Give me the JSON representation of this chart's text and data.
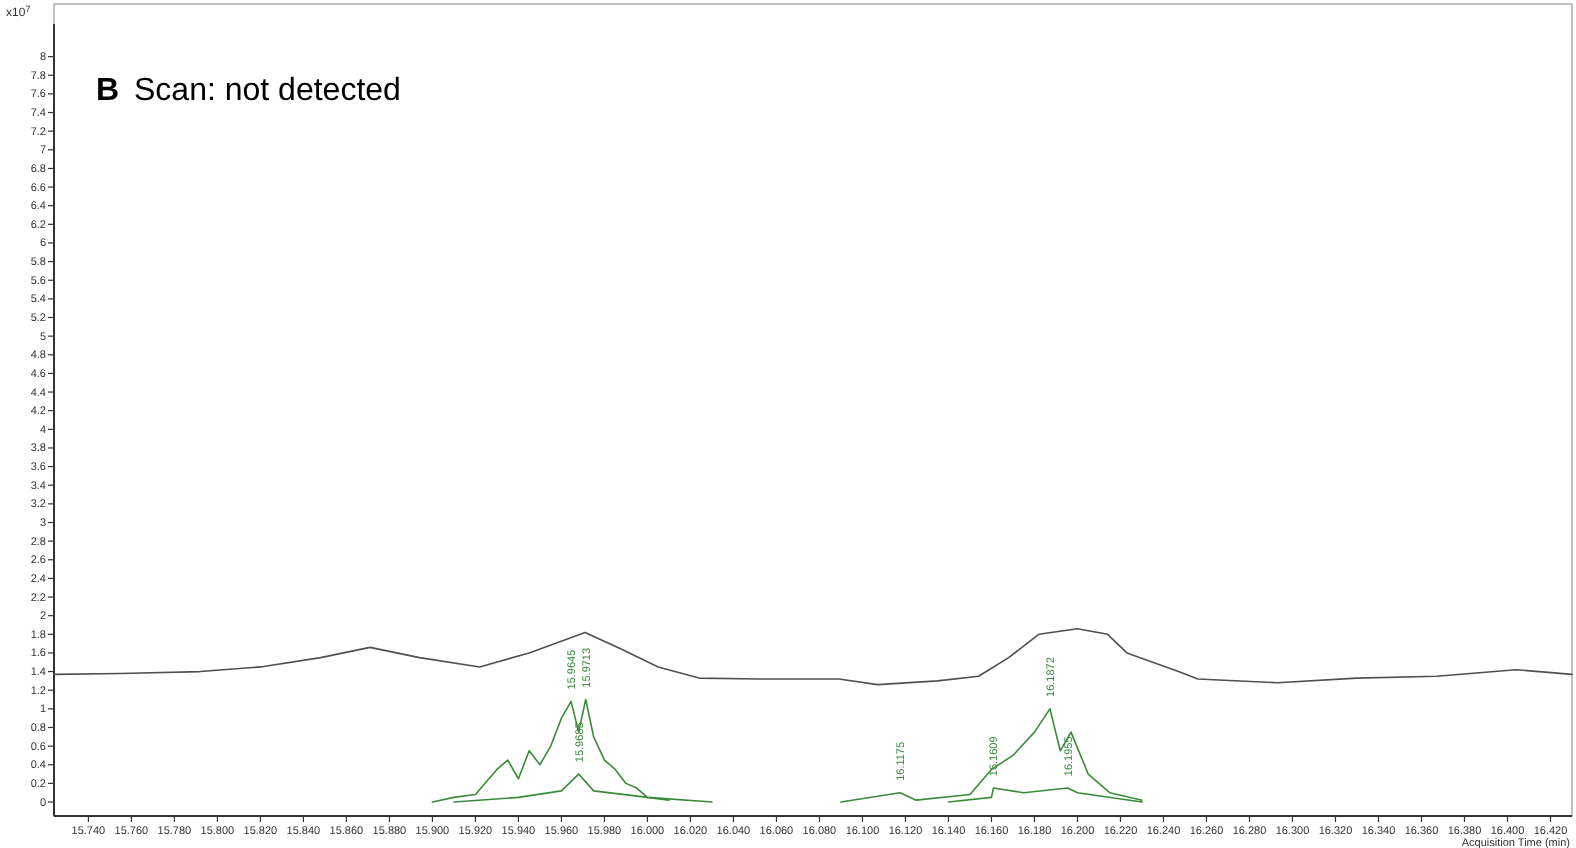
{
  "chart_data": {
    "type": "line",
    "title": "B",
    "subtitle": "Scan: not detected",
    "ylabel": "x10$^{7}$",
    "xlabel": "Acquisition Time (min)",
    "xlim": [
      15.724,
      16.43
    ],
    "ylim": [
      -0.15,
      8.35
    ],
    "xticks": [
      {
        "value": 15.74,
        "label": "15.740"
      },
      {
        "value": 15.76,
        "label": "15.760"
      },
      {
        "value": 15.78,
        "label": "15.780"
      },
      {
        "value": 15.8,
        "label": "15.800"
      },
      {
        "value": 15.82,
        "label": "15.820"
      },
      {
        "value": 15.84,
        "label": "15.840"
      },
      {
        "value": 15.86,
        "label": "15.860"
      },
      {
        "value": 15.88,
        "label": "15.880"
      },
      {
        "value": 15.9,
        "label": "15.900"
      },
      {
        "value": 15.92,
        "label": "15.920"
      },
      {
        "value": 15.94,
        "label": "15.940"
      },
      {
        "value": 15.96,
        "label": "15.960"
      },
      {
        "value": 15.98,
        "label": "15.980"
      },
      {
        "value": 16.0,
        "label": "16.000"
      },
      {
        "value": 16.02,
        "label": "16.020"
      },
      {
        "value": 16.04,
        "label": "16.040"
      },
      {
        "value": 16.06,
        "label": "16.060"
      },
      {
        "value": 16.08,
        "label": "16.080"
      },
      {
        "value": 16.1,
        "label": "16.100"
      },
      {
        "value": 16.12,
        "label": "16.120"
      },
      {
        "value": 16.14,
        "label": "16.140"
      },
      {
        "value": 16.16,
        "label": "16.160"
      },
      {
        "value": 16.18,
        "label": "16.180"
      },
      {
        "value": 16.2,
        "label": "16.200"
      },
      {
        "value": 16.22,
        "label": "16.220"
      },
      {
        "value": 16.24,
        "label": "16.240"
      },
      {
        "value": 16.26,
        "label": "16.260"
      },
      {
        "value": 16.28,
        "label": "16.280"
      },
      {
        "value": 16.3,
        "label": "16.300"
      },
      {
        "value": 16.32,
        "label": "16.320"
      },
      {
        "value": 16.34,
        "label": "16.340"
      },
      {
        "value": 16.36,
        "label": "16.360"
      },
      {
        "value": 16.38,
        "label": "16.380"
      },
      {
        "value": 16.4,
        "label": "16.400"
      },
      {
        "value": 16.42,
        "label": "16.420"
      }
    ],
    "yticks": [
      0,
      0.2,
      0.4,
      0.6,
      0.8,
      1,
      1.2,
      1.4,
      1.6,
      1.8,
      2,
      2.2,
      2.4,
      2.6,
      2.8,
      3,
      3.2,
      3.4,
      3.6,
      3.8,
      4,
      4.2,
      4.4,
      4.6,
      4.8,
      5,
      5.2,
      5.4,
      5.6,
      5.8,
      6,
      6.2,
      6.4,
      6.6,
      6.8,
      7,
      7.2,
      7.4,
      7.6,
      7.8,
      8
    ],
    "grid": false,
    "marker": "none",
    "line_style": "solid",
    "series": [
      {
        "color": "#505050",
        "x": [
          15.724,
          15.755,
          15.792,
          15.82,
          15.848,
          15.871,
          15.894,
          15.922,
          15.945,
          15.971,
          15.987,
          16.005,
          16.024,
          16.052,
          16.089,
          16.107,
          16.135,
          16.154,
          16.168,
          16.182,
          16.2,
          16.214,
          16.223,
          16.247,
          16.256,
          16.293,
          16.33,
          16.367,
          16.404,
          16.43
        ],
        "values": [
          1.37,
          1.38,
          1.4,
          1.45,
          1.55,
          1.66,
          1.55,
          1.45,
          1.6,
          1.82,
          1.65,
          1.45,
          1.33,
          1.32,
          1.32,
          1.26,
          1.3,
          1.35,
          1.55,
          1.8,
          1.86,
          1.8,
          1.6,
          1.4,
          1.32,
          1.28,
          1.33,
          1.35,
          1.42,
          1.37
        ]
      },
      {
        "color": "#3a8a3a",
        "x": [
          15.9,
          15.91,
          15.92,
          15.93,
          15.935,
          15.94,
          15.945,
          15.95,
          15.955,
          15.96,
          15.9645,
          15.968,
          15.9713,
          15.975,
          15.98,
          15.985,
          15.99,
          15.995,
          16.0,
          16.01
        ],
        "values": [
          0,
          0.05,
          0.08,
          0.35,
          0.45,
          0.25,
          0.55,
          0.4,
          0.6,
          0.9,
          1.08,
          0.75,
          1.1,
          0.7,
          0.45,
          0.35,
          0.2,
          0.15,
          0.05,
          0.02
        ]
      },
      {
        "color": "#3a8a3a",
        "x": [
          15.91,
          15.94,
          15.96,
          15.968,
          15.975,
          16.0,
          16.03
        ],
        "values": [
          0,
          0.05,
          0.12,
          0.3,
          0.12,
          0.05,
          0
        ]
      },
      {
        "color": "#3a8a3a",
        "x": [
          16.09,
          16.1175,
          16.125,
          16.15,
          16.16,
          16.17,
          16.18,
          16.1872,
          16.192,
          16.197,
          16.205,
          16.215,
          16.23
        ],
        "values": [
          0,
          0.1,
          0.02,
          0.08,
          0.35,
          0.5,
          0.75,
          1.0,
          0.55,
          0.75,
          0.3,
          0.1,
          0.02
        ]
      },
      {
        "color": "#3a8a3a",
        "x": [
          16.14,
          16.16,
          16.1609,
          16.175,
          16.1955,
          16.2,
          16.23
        ],
        "values": [
          0,
          0.05,
          0.15,
          0.1,
          0.15,
          0.1,
          0
        ]
      }
    ],
    "annotations": [
      {
        "text": "15.9645",
        "x": 15.9645,
        "y": 1.1
      },
      {
        "text": "15.9713",
        "x": 15.9713,
        "y": 1.12
      },
      {
        "text": "15.9685",
        "x": 15.968,
        "y": 0.32
      },
      {
        "text": "16.1175",
        "x": 16.1175,
        "y": 0.12
      },
      {
        "text": "16.1609",
        "x": 16.1609,
        "y": 0.17
      },
      {
        "text": "16.1872",
        "x": 16.1872,
        "y": 1.02
      },
      {
        "text": "16.1955",
        "x": 16.1955,
        "y": 0.17
      }
    ]
  }
}
